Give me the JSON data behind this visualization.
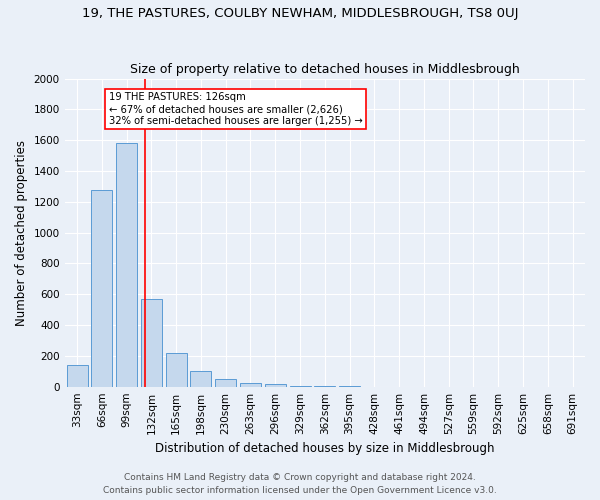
{
  "title": "19, THE PASTURES, COULBY NEWHAM, MIDDLESBROUGH, TS8 0UJ",
  "subtitle": "Size of property relative to detached houses in Middlesbrough",
  "xlabel": "Distribution of detached houses by size in Middlesbrough",
  "ylabel": "Number of detached properties",
  "footnote1": "Contains HM Land Registry data © Crown copyright and database right 2024.",
  "footnote2": "Contains public sector information licensed under the Open Government Licence v3.0.",
  "bar_labels": [
    "33sqm",
    "66sqm",
    "99sqm",
    "132sqm",
    "165sqm",
    "198sqm",
    "230sqm",
    "263sqm",
    "296sqm",
    "329sqm",
    "362sqm",
    "395sqm",
    "428sqm",
    "461sqm",
    "494sqm",
    "527sqm",
    "559sqm",
    "592sqm",
    "625sqm",
    "658sqm",
    "691sqm"
  ],
  "bar_values": [
    140,
    1275,
    1580,
    570,
    220,
    100,
    52,
    22,
    15,
    5,
    5,
    5,
    0,
    0,
    0,
    0,
    0,
    0,
    0,
    0,
    0
  ],
  "bar_color": "#c5d8ed",
  "bar_edgecolor": "#5b9bd5",
  "red_line_x": 2.73,
  "annotation_text": "19 THE PASTURES: 126sqm\n← 67% of detached houses are smaller (2,626)\n32% of semi-detached houses are larger (1,255) →",
  "annotation_box_color": "white",
  "annotation_box_edgecolor": "red",
  "ylim": [
    0,
    2000
  ],
  "yticks": [
    0,
    200,
    400,
    600,
    800,
    1000,
    1200,
    1400,
    1600,
    1800,
    2000
  ],
  "bg_color": "#eaf0f8",
  "plot_bg_color": "#eaf0f8",
  "grid_color": "white",
  "title_fontsize": 9.5,
  "subtitle_fontsize": 9,
  "label_fontsize": 8.5,
  "tick_fontsize": 7.5,
  "footnote_fontsize": 6.5
}
